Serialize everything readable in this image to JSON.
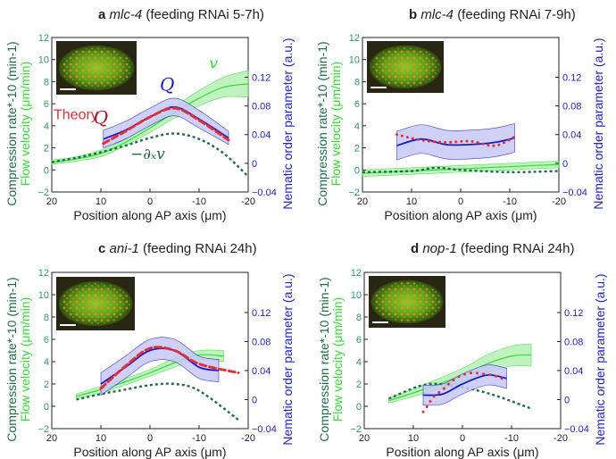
{
  "colors": {
    "velocity": "#33dd33",
    "velocity_band": "#b6f0b6",
    "compression": "#1c6e46",
    "nematic": "#1a1acc",
    "nematic_band": "#c6c8f4",
    "theory": "#e0303a",
    "left_tick": "#2a9a6a",
    "right_tick": "#2222cc"
  },
  "chart_data": [
    {
      "type": "line",
      "panel_letter": "a",
      "gene": "mlc-4",
      "condition": "(feeding RNAi 5-7h)",
      "xlabel": "Position along AP axis (μm)",
      "ylabel_compression": "Compression rate*-10 (min-1)",
      "ylabel_velocity": "Flow velocity (μm/min)",
      "ylabel_right": "Nematic order parameter (a.u.)",
      "xlim": [
        20,
        -20
      ],
      "ylim": [
        -2,
        12
      ],
      "ylim_right": [
        -0.04,
        0.12
      ],
      "xticks": [
        "20",
        "10",
        "0",
        "-10",
        "-20"
      ],
      "yticks": [
        "−2",
        "0",
        "2",
        "4",
        "6",
        "8",
        "10",
        "12"
      ],
      "yticks_right": [
        "−0.04",
        "0",
        "0.04",
        "0.08",
        "0.12"
      ],
      "annotations": {
        "Q": "Q",
        "theory": "Theory",
        "theory_Q": "Q",
        "v": "v",
        "neg_dxv": "−∂ₓv"
      },
      "series": [
        {
          "name": "Flow velocity v",
          "x": [
            20,
            15,
            10,
            5,
            0,
            -5,
            -10,
            -15,
            -20
          ],
          "y": [
            0.7,
            1.0,
            1.5,
            2.5,
            3.8,
            5.2,
            6.5,
            7.5,
            7.8
          ],
          "err": [
            0.2,
            0.2,
            0.3,
            0.3,
            0.4,
            0.5,
            0.7,
            0.9,
            1.2
          ]
        },
        {
          "name": "-dxv",
          "x": [
            20,
            15,
            10,
            5,
            0,
            -5,
            -10,
            -15,
            -20
          ],
          "y": [
            0.7,
            1.1,
            1.6,
            2.2,
            2.9,
            3.3,
            2.8,
            1.5,
            -0.6
          ]
        },
        {
          "name": "Q",
          "x": [
            9.5,
            5,
            0,
            -5,
            -10,
            -16
          ],
          "y": [
            2.8,
            3.6,
            4.8,
            5.7,
            4.6,
            2.9
          ],
          "err": [
            0.8,
            0.8,
            0.8,
            0.8,
            0.8,
            0.6
          ]
        },
        {
          "name": "Theory",
          "x": [
            9.5,
            5,
            0,
            -5,
            -10,
            -16
          ],
          "y": [
            2.4,
            3.5,
            4.8,
            5.6,
            4.5,
            2.7
          ]
        }
      ]
    },
    {
      "type": "line",
      "panel_letter": "b",
      "gene": "mlc-4",
      "condition": "(feeding RNAi 7-9h)",
      "xlabel": "Position along AP axis (μm)",
      "ylabel_compression": "Compression rate*-10 (min-1)",
      "ylabel_velocity": "Flow velocity (μm/min)",
      "ylabel_right": "Nematic order parameter (a.u.)",
      "xlim": [
        20,
        -20
      ],
      "ylim": [
        -2,
        12
      ],
      "ylim_right": [
        -0.04,
        0.12
      ],
      "xticks": [
        "20",
        "10",
        "0",
        "-10",
        "-20"
      ],
      "yticks": [
        "−2",
        "0",
        "2",
        "4",
        "6",
        "8",
        "10",
        "12"
      ],
      "yticks_right": [
        "−0.04",
        "0",
        "0.04",
        "0.08",
        "0.12"
      ],
      "series": [
        {
          "name": "Flow velocity v",
          "x": [
            20,
            10,
            0,
            -10,
            -20
          ],
          "y": [
            -0.3,
            -0.1,
            0.1,
            0.3,
            0.5
          ],
          "err": [
            0.3,
            0.3,
            0.3,
            0.3,
            0.3
          ]
        },
        {
          "name": "-dxv",
          "x": [
            20,
            10,
            5,
            0,
            -10,
            -20
          ],
          "y": [
            -0.2,
            -0.1,
            0.2,
            0.0,
            -0.2,
            -0.1
          ]
        },
        {
          "name": "Q",
          "x": [
            13,
            8,
            3,
            -2,
            -7,
            -11
          ],
          "y": [
            2.2,
            2.8,
            2.3,
            2.3,
            2.5,
            2.9
          ],
          "err": [
            1.3,
            1.3,
            1.3,
            1.3,
            1.3,
            1.3
          ]
        },
        {
          "name": "Theory",
          "x": [
            13,
            8,
            3,
            -2,
            -7,
            -11
          ],
          "y": [
            3.2,
            2.7,
            2.5,
            2.6,
            2.2,
            3.0
          ]
        }
      ]
    },
    {
      "type": "line",
      "panel_letter": "c",
      "gene": "ani-1",
      "condition": "(feeding RNAi 24h)",
      "xlabel": "Position along AP axis (μm)",
      "ylabel_compression": "Compression rate*-10 (min-1)",
      "ylabel_velocity": "Flow velocity (μm/min)",
      "ylabel_right": "Nematic order parameter (a.u.)",
      "xlim": [
        20,
        -20
      ],
      "ylim": [
        -2,
        12
      ],
      "ylim_right": [
        -0.04,
        0.12
      ],
      "xticks": [
        "20",
        "10",
        "0",
        "-10",
        "-20"
      ],
      "yticks": [
        "−2",
        "0",
        "2",
        "4",
        "6",
        "8",
        "10",
        "12"
      ],
      "yticks_right": [
        "−0.04",
        "0",
        "0.04",
        "0.08",
        "0.12"
      ],
      "series": [
        {
          "name": "Flow velocity v",
          "x": [
            15,
            10,
            5,
            0,
            -5,
            -10,
            -15
          ],
          "y": [
            0.9,
            1.5,
            2.2,
            3.0,
            3.9,
            4.6,
            4.5
          ],
          "err": [
            0.2,
            0.3,
            0.3,
            0.3,
            0.4,
            0.4,
            0.5
          ]
        },
        {
          "name": "-dxv",
          "x": [
            15,
            10,
            5,
            0,
            -5,
            -10,
            -18
          ],
          "y": [
            0.6,
            1.1,
            1.5,
            1.9,
            2.0,
            1.4,
            -1.2
          ]
        },
        {
          "name": "Q",
          "x": [
            10,
            5,
            0,
            -5,
            -10,
            -14
          ],
          "y": [
            2.0,
            3.5,
            5.0,
            5.0,
            3.5,
            3.2
          ],
          "err": [
            1.0,
            1.0,
            1.0,
            1.0,
            1.0,
            1.0
          ]
        },
        {
          "name": "Theory",
          "x": [
            10,
            5,
            0,
            -5,
            -10,
            -18
          ],
          "y": [
            1.6,
            3.6,
            5.2,
            5.0,
            3.8,
            3.0
          ]
        }
      ]
    },
    {
      "type": "line",
      "panel_letter": "d",
      "gene": "nop-1",
      "condition": "(feeding RNAi 24h)",
      "xlabel": "Position along AP axis (μm)",
      "ylabel_compression": "Compression rate*-10 (min-1)",
      "ylabel_velocity": "Flow velocity (μm/min)",
      "ylabel_right": "Nematic order parameter (a.u.)",
      "xlim": [
        20,
        -20
      ],
      "ylim": [
        -2,
        12
      ],
      "ylim_right": [
        -0.04,
        0.12
      ],
      "xticks": [
        "20",
        "10",
        "0",
        "-10",
        "-20"
      ],
      "yticks": [
        "−2",
        "0",
        "2",
        "4",
        "6",
        "8",
        "10",
        "12"
      ],
      "yticks_right": [
        "−0.04",
        "0",
        "0.04",
        "0.08",
        "0.12"
      ],
      "series": [
        {
          "name": "Flow velocity v",
          "x": [
            15,
            8,
            0,
            -5,
            -10,
            -14
          ],
          "y": [
            0.5,
            1.5,
            2.8,
            3.8,
            4.5,
            4.6
          ],
          "err": [
            0.2,
            0.4,
            0.6,
            0.8,
            0.9,
            1.0
          ]
        },
        {
          "name": "-dxv",
          "x": [
            15,
            8,
            3,
            -5,
            -14
          ],
          "y": [
            0.7,
            1.9,
            1.9,
            1.2,
            -0.2
          ]
        },
        {
          "name": "Q",
          "x": [
            8,
            4,
            0,
            -5,
            -9
          ],
          "y": [
            1.0,
            1.1,
            2.0,
            2.8,
            2.5
          ],
          "err": [
            0.9,
            0.9,
            0.9,
            0.9,
            0.9
          ]
        },
        {
          "name": "Theory",
          "x": [
            8,
            7,
            6,
            4,
            2,
            0,
            -2,
            -4,
            -6,
            -8,
            -9
          ],
          "y": [
            -0.5,
            0.1,
            0.8,
            1.5,
            2.3,
            2.8,
            3.0,
            2.9,
            2.8,
            2.5,
            2.2
          ]
        }
      ]
    }
  ]
}
